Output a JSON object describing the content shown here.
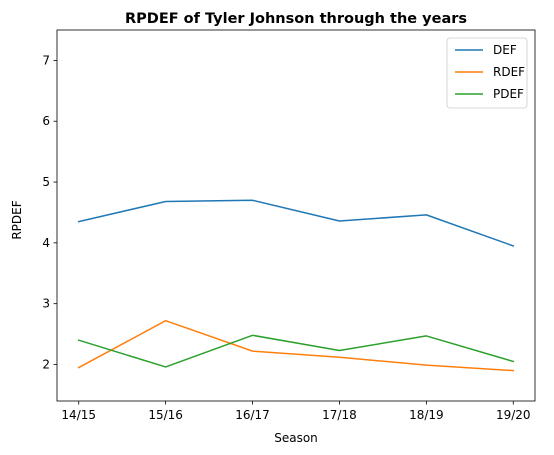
{
  "chart_data": {
    "type": "line",
    "title": "RPDEF of Tyler Johnson through the years",
    "xlabel": "Season",
    "ylabel": "RPDEF",
    "categories": [
      "14/15",
      "15/16",
      "16/17",
      "17/18",
      "18/19",
      "19/20"
    ],
    "ylim": [
      1.4,
      7.5
    ],
    "yticks": [
      2,
      3,
      4,
      5,
      6,
      7
    ],
    "grid": false,
    "legend_position": "top-right",
    "series": [
      {
        "name": "DEF",
        "color": "#1f77b4",
        "values": [
          4.35,
          4.68,
          4.7,
          4.36,
          4.46,
          3.95
        ]
      },
      {
        "name": "RDEF",
        "color": "#ff7f0e",
        "values": [
          1.95,
          2.72,
          2.22,
          2.12,
          1.99,
          1.9
        ]
      },
      {
        "name": "PDEF",
        "color": "#2ca02c",
        "values": [
          2.4,
          1.96,
          2.48,
          2.23,
          2.47,
          2.05
        ]
      }
    ]
  }
}
